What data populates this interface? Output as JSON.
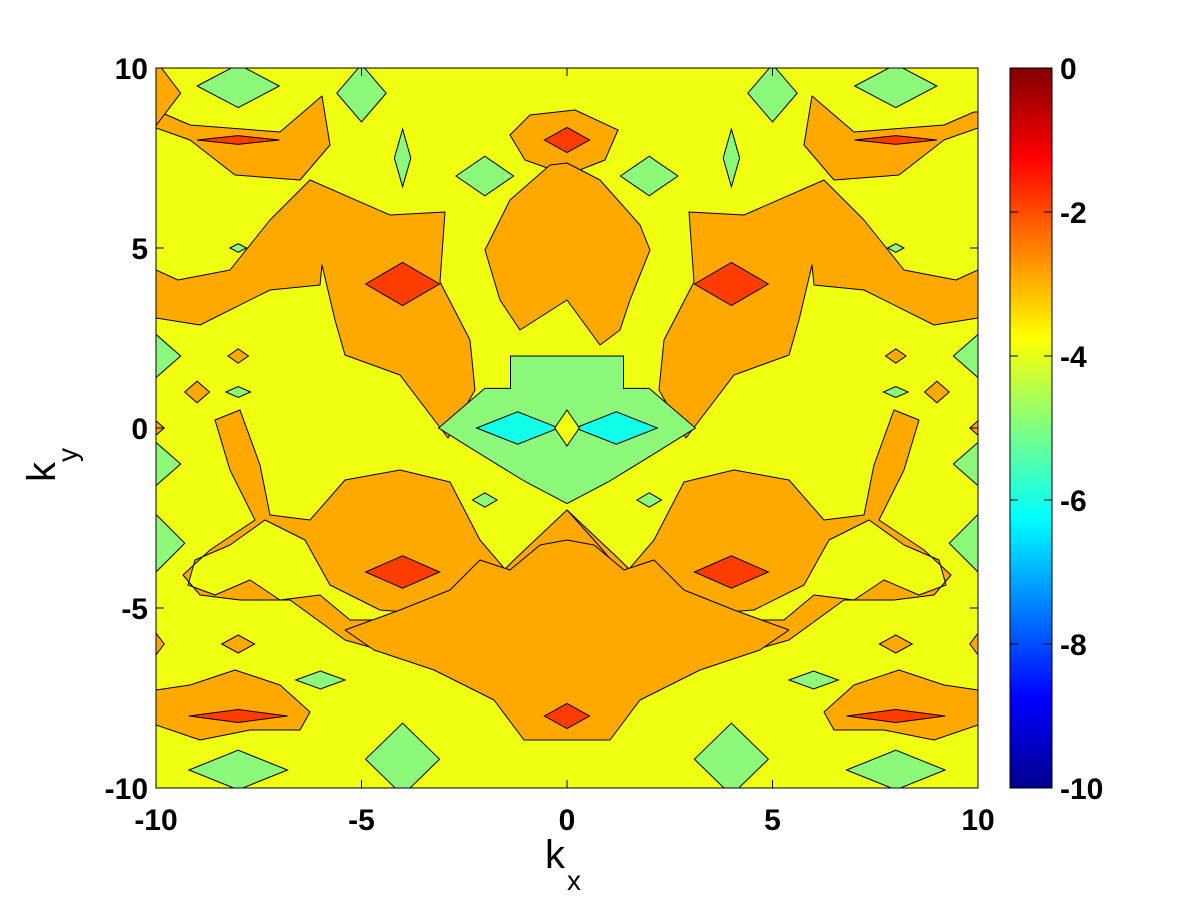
{
  "chart_data": {
    "type": "heatmap",
    "subtype": "filled-contour",
    "title": "",
    "xlabel": {
      "base": "k",
      "sub": "x"
    },
    "ylabel": {
      "base": "k",
      "sub": "y"
    },
    "xlim": [
      -10,
      10
    ],
    "ylim": [
      -10,
      10
    ],
    "xticks": [
      -10,
      -5,
      0,
      5,
      10
    ],
    "yticks": [
      -10,
      -5,
      0,
      5,
      10
    ],
    "colorbar": {
      "colormap": "jet",
      "range": [
        -10,
        0
      ],
      "ticks": [
        0,
        -2,
        -4,
        -6,
        -8,
        -10
      ]
    },
    "grid": false,
    "legend": "none",
    "background_value": -4,
    "level_colors": {
      "-5": "#8cf97a",
      "-4": "#f0ff12",
      "-3": "#ffa800",
      "-2": "#ff3c00",
      "-6": "#12ffec"
    },
    "features": [
      {
        "kx": 0,
        "ky": 0,
        "value": -4.8,
        "rx": 2.5,
        "ry": 2.0,
        "shape": "blob"
      },
      {
        "kx": -1.2,
        "ky": 0,
        "value": -6.3,
        "rx": 1.0,
        "ry": 0.45,
        "shape": "diamond"
      },
      {
        "kx": 1.2,
        "ky": 0,
        "value": -6.3,
        "rx": 1.0,
        "ry": 0.45,
        "shape": "diamond"
      },
      {
        "kx": 0,
        "ky": 0,
        "value": -3.6,
        "rx": 0.3,
        "ry": 0.5,
        "shape": "diamond"
      },
      {
        "kx": 0,
        "ky": 8,
        "value": -2.0,
        "rx": 0.55,
        "ry": 0.35,
        "shape": "diamond"
      },
      {
        "kx": 0,
        "ky": -8,
        "value": -2.0,
        "rx": 0.55,
        "ry": 0.35,
        "shape": "diamond"
      },
      {
        "kx": -4,
        "ky": 4,
        "value": -2.0,
        "rx": 0.9,
        "ry": 0.6,
        "shape": "diamond"
      },
      {
        "kx": 4,
        "ky": 4,
        "value": -2.0,
        "rx": 0.9,
        "ry": 0.6,
        "shape": "diamond"
      },
      {
        "kx": -4,
        "ky": -4,
        "value": -2.0,
        "rx": 0.9,
        "ry": 0.45,
        "shape": "diamond"
      },
      {
        "kx": 4,
        "ky": -4,
        "value": -2.0,
        "rx": 0.9,
        "ry": 0.45,
        "shape": "diamond"
      },
      {
        "kx": -8,
        "ky": 8,
        "value": -2.0,
        "rx": 1.0,
        "ry": 0.12,
        "shape": "diamond"
      },
      {
        "kx": 8,
        "ky": 8,
        "value": -2.0,
        "rx": 1.0,
        "ry": 0.12,
        "shape": "diamond"
      },
      {
        "kx": -8,
        "ky": -8,
        "value": -2.0,
        "rx": 1.2,
        "ry": 0.18,
        "shape": "diamond"
      },
      {
        "kx": 8,
        "ky": -8,
        "value": -2.0,
        "rx": 1.2,
        "ry": 0.18,
        "shape": "diamond"
      },
      {
        "kx": -2,
        "ky": 7,
        "value": -4.8,
        "rx": 0.7,
        "ry": 0.55,
        "shape": "diamond"
      },
      {
        "kx": 2,
        "ky": 7,
        "value": -4.8,
        "rx": 0.7,
        "ry": 0.55,
        "shape": "diamond"
      },
      {
        "kx": -4,
        "ky": 7.5,
        "value": -4.8,
        "rx": 0.2,
        "ry": 0.8,
        "shape": "diamond"
      },
      {
        "kx": 4,
        "ky": 7.5,
        "value": -4.8,
        "rx": 0.2,
        "ry": 0.8,
        "shape": "diamond"
      },
      {
        "kx": -8,
        "ky": 9.5,
        "value": -4.8,
        "rx": 1.0,
        "ry": 0.6,
        "shape": "diamond"
      },
      {
        "kx": 8,
        "ky": 9.5,
        "value": -4.8,
        "rx": 1.0,
        "ry": 0.6,
        "shape": "diamond"
      },
      {
        "kx": -5,
        "ky": 9.3,
        "value": -4.8,
        "rx": 0.6,
        "ry": 0.8,
        "shape": "diamond"
      },
      {
        "kx": 5,
        "ky": 9.3,
        "value": -4.8,
        "rx": 0.6,
        "ry": 0.8,
        "shape": "diamond"
      },
      {
        "kx": -8,
        "ky": -9.5,
        "value": -4.8,
        "rx": 1.2,
        "ry": 0.55,
        "shape": "diamond"
      },
      {
        "kx": 8,
        "ky": -9.5,
        "value": -4.8,
        "rx": 1.2,
        "ry": 0.55,
        "shape": "diamond"
      },
      {
        "kx": -4,
        "ky": -9.2,
        "value": -4.8,
        "rx": 0.9,
        "ry": 1.0,
        "shape": "diamond"
      },
      {
        "kx": 4,
        "ky": -9.2,
        "value": -4.8,
        "rx": 0.9,
        "ry": 1.0,
        "shape": "diamond"
      },
      {
        "kx": -6,
        "ky": -7,
        "value": -4.8,
        "rx": 0.6,
        "ry": 0.25,
        "shape": "diamond"
      },
      {
        "kx": 6,
        "ky": -7,
        "value": -4.8,
        "rx": 0.6,
        "ry": 0.25,
        "shape": "diamond"
      },
      {
        "kx": -2,
        "ky": -2,
        "value": -4.8,
        "rx": 0.3,
        "ry": 0.2,
        "shape": "diamond"
      },
      {
        "kx": 2,
        "ky": -2,
        "value": -4.8,
        "rx": 0.3,
        "ry": 0.2,
        "shape": "diamond"
      },
      {
        "kx": -8,
        "ky": 1,
        "value": -4.8,
        "rx": 0.3,
        "ry": 0.15,
        "shape": "diamond"
      },
      {
        "kx": 8,
        "ky": 1,
        "value": -4.8,
        "rx": 0.3,
        "ry": 0.15,
        "shape": "diamond"
      },
      {
        "kx": -8,
        "ky": 5,
        "value": -4.8,
        "rx": 0.2,
        "ry": 0.12,
        "shape": "diamond"
      },
      {
        "kx": 8,
        "ky": 5,
        "value": -4.8,
        "rx": 0.2,
        "ry": 0.12,
        "shape": "diamond"
      },
      {
        "kx": -10,
        "ky": 2,
        "value": -4.8,
        "rx": 0.6,
        "ry": 0.6,
        "shape": "diamond"
      },
      {
        "kx": 10,
        "ky": 2,
        "value": -4.8,
        "rx": 0.6,
        "ry": 0.6,
        "shape": "diamond"
      },
      {
        "kx": -10,
        "ky": -1,
        "value": -4.8,
        "rx": 0.6,
        "ry": 0.6,
        "shape": "diamond"
      },
      {
        "kx": 10,
        "ky": -1,
        "value": -4.8,
        "rx": 0.6,
        "ry": 0.6,
        "shape": "diamond"
      },
      {
        "kx": -10,
        "ky": -3.2,
        "value": -4.8,
        "rx": 0.7,
        "ry": 0.8,
        "shape": "diamond"
      },
      {
        "kx": 10,
        "ky": -3.2,
        "value": -4.8,
        "rx": 0.7,
        "ry": 0.8,
        "shape": "diamond"
      },
      {
        "kx": -8,
        "ky": 2,
        "value": -3.0,
        "rx": 0.25,
        "ry": 0.2,
        "shape": "diamond"
      },
      {
        "kx": 8,
        "ky": 2,
        "value": -3.0,
        "rx": 0.25,
        "ry": 0.2,
        "shape": "diamond"
      },
      {
        "kx": -9,
        "ky": 1,
        "value": -3.0,
        "rx": 0.3,
        "ry": 0.3,
        "shape": "diamond"
      },
      {
        "kx": 9,
        "ky": 1,
        "value": -3.0,
        "rx": 0.3,
        "ry": 0.3,
        "shape": "diamond"
      },
      {
        "kx": -8,
        "ky": -6,
        "value": -3.0,
        "rx": 0.4,
        "ry": 0.25,
        "shape": "diamond"
      },
      {
        "kx": 8,
        "ky": -6,
        "value": -3.0,
        "rx": 0.4,
        "ry": 0.25,
        "shape": "diamond"
      },
      {
        "kx": -10,
        "ky": 0,
        "value": -3.0,
        "rx": 0.2,
        "ry": 0.2,
        "shape": "diamond"
      },
      {
        "kx": 10,
        "ky": 0,
        "value": -3.0,
        "rx": 0.2,
        "ry": 0.2,
        "shape": "diamond"
      },
      {
        "kx": -10,
        "ky": -6,
        "value": -3.0,
        "rx": 0.2,
        "ry": 0.3,
        "shape": "diamond"
      },
      {
        "kx": 10,
        "ky": -6,
        "value": -3.0,
        "rx": 0.2,
        "ry": 0.3,
        "shape": "diamond"
      },
      {
        "kx": -10,
        "ky": 9.3,
        "value": -3.0,
        "rx": 0.6,
        "ry": 0.9,
        "shape": "diamond"
      }
    ]
  }
}
